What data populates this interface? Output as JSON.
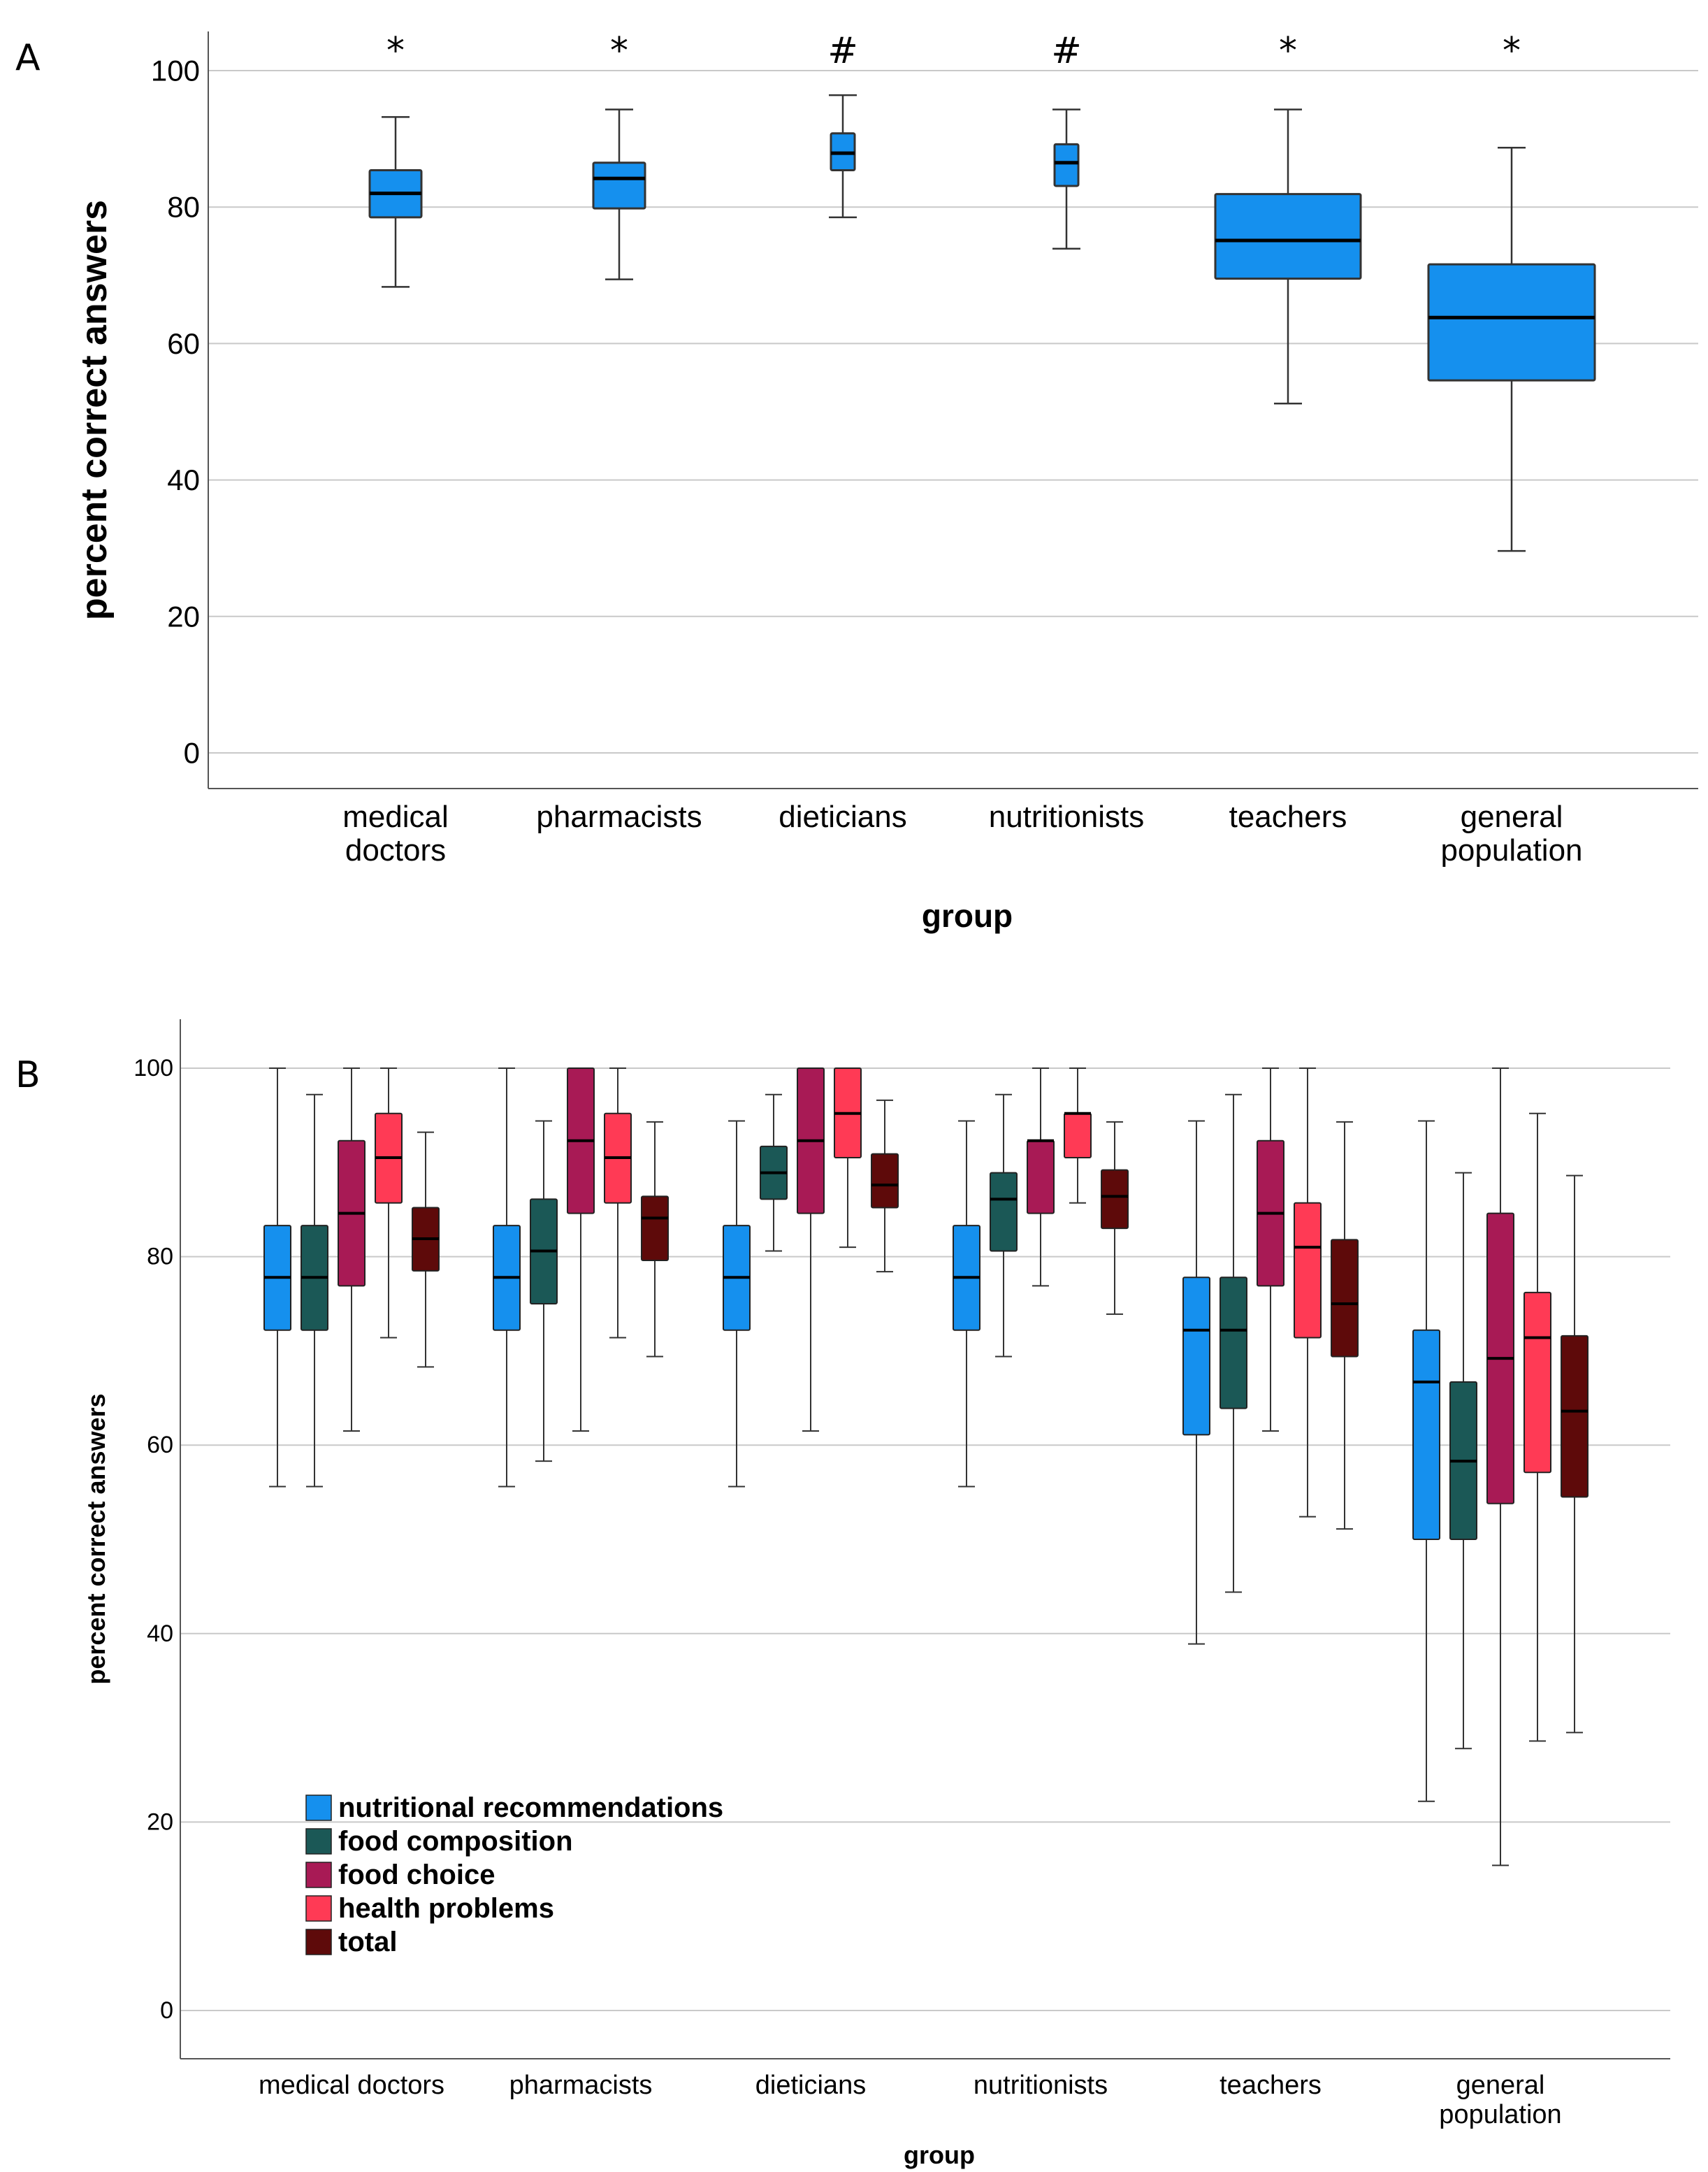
{
  "chart_data": [
    {
      "type": "box",
      "panel": "A",
      "xlabel": "group",
      "ylabel": "percent correct answers",
      "ylim": [
        -5,
        105
      ],
      "yticks": [
        0,
        20,
        40,
        60,
        80,
        100
      ],
      "grid": true,
      "categories": [
        [
          "medical",
          "doctors"
        ],
        [
          "pharmacists"
        ],
        [
          "dieticians"
        ],
        [
          "nutritionists"
        ],
        [
          "teachers"
        ],
        [
          "general",
          "population"
        ]
      ],
      "significance_marks": [
        "*",
        "*",
        "#",
        "#",
        "*",
        "*"
      ],
      "series": [
        {
          "name": "total",
          "color": "#1590EE",
          "boxes": [
            {
              "min": 68.3,
              "q1": 78.5,
              "median": 82.0,
              "q3": 85.4,
              "max": 93.2
            },
            {
              "min": 69.4,
              "q1": 79.8,
              "median": 84.2,
              "q3": 86.5,
              "max": 94.3
            },
            {
              "min": 78.5,
              "q1": 85.4,
              "median": 87.9,
              "q3": 90.8,
              "max": 96.4
            },
            {
              "min": 73.9,
              "q1": 83.1,
              "median": 86.5,
              "q3": 89.2,
              "max": 94.3
            },
            {
              "min": 51.2,
              "q1": 69.5,
              "median": 75.1,
              "q3": 81.9,
              "max": 94.3
            },
            {
              "min": 29.6,
              "q1": 54.6,
              "median": 63.8,
              "q3": 71.6,
              "max": 88.7
            }
          ]
        }
      ]
    },
    {
      "type": "box",
      "panel": "B",
      "xlabel": "group",
      "ylabel": "percent correct answers",
      "ylim": [
        -5,
        105.5
      ],
      "yticks": [
        0,
        20,
        40,
        60,
        80,
        100
      ],
      "grid": true,
      "legend_position": "bottom-left",
      "categories": [
        [
          "medical doctors"
        ],
        [
          "pharmacists"
        ],
        [
          "dieticians"
        ],
        [
          "nutritionists"
        ],
        [
          "teachers"
        ],
        [
          "general",
          "population"
        ]
      ],
      "series": [
        {
          "name": "nutritional recommendations",
          "color": "#1590EE",
          "boxes": [
            {
              "min": 55.6,
              "q1": 72.2,
              "median": 77.8,
              "q3": 83.3,
              "max": 100
            },
            {
              "min": 55.6,
              "q1": 72.2,
              "median": 77.8,
              "q3": 83.3,
              "max": 100
            },
            {
              "min": 55.6,
              "q1": 72.2,
              "median": 77.8,
              "q3": 83.3,
              "max": 94.4
            },
            {
              "min": 55.6,
              "q1": 72.2,
              "median": 77.8,
              "q3": 83.3,
              "max": 94.4
            },
            {
              "min": 38.9,
              "q1": 61.1,
              "median": 72.2,
              "q3": 77.8,
              "max": 94.4
            },
            {
              "min": 22.2,
              "q1": 50.0,
              "median": 66.7,
              "q3": 72.2,
              "max": 94.4
            }
          ]
        },
        {
          "name": "food composition",
          "color": "#1B5856",
          "boxes": [
            {
              "min": 55.6,
              "q1": 72.2,
              "median": 77.8,
              "q3": 83.3,
              "max": 97.2
            },
            {
              "min": 58.3,
              "q1": 75.0,
              "median": 80.6,
              "q3": 86.1,
              "max": 94.4
            },
            {
              "min": 80.6,
              "q1": 86.1,
              "median": 88.9,
              "q3": 91.7,
              "max": 97.2
            },
            {
              "min": 69.4,
              "q1": 80.6,
              "median": 86.1,
              "q3": 88.9,
              "max": 97.2
            },
            {
              "min": 44.4,
              "q1": 63.9,
              "median": 72.2,
              "q3": 77.8,
              "max": 97.2
            },
            {
              "min": 27.8,
              "q1": 50.0,
              "median": 58.3,
              "q3": 66.7,
              "max": 88.9
            }
          ]
        },
        {
          "name": "food choice",
          "color": "#A81A55",
          "boxes": [
            {
              "min": 61.5,
              "q1": 76.9,
              "median": 84.6,
              "q3": 92.3,
              "max": 100
            },
            {
              "min": 61.5,
              "q1": 84.6,
              "median": 92.3,
              "q3": 100,
              "max": 100
            },
            {
              "min": 61.5,
              "q1": 84.6,
              "median": 92.3,
              "q3": 100,
              "max": 100
            },
            {
              "min": 76.9,
              "q1": 84.6,
              "median": 92.3,
              "q3": 92.3,
              "max": 100
            },
            {
              "min": 61.5,
              "q1": 76.9,
              "median": 84.6,
              "q3": 92.3,
              "max": 100
            },
            {
              "min": 15.4,
              "q1": 53.8,
              "median": 69.2,
              "q3": 84.6,
              "max": 100
            }
          ]
        },
        {
          "name": "health problems",
          "color": "#FF3A55",
          "boxes": [
            {
              "min": 71.4,
              "q1": 85.7,
              "median": 90.5,
              "q3": 95.2,
              "max": 100
            },
            {
              "min": 71.4,
              "q1": 85.7,
              "median": 90.5,
              "q3": 95.2,
              "max": 100
            },
            {
              "min": 81.0,
              "q1": 90.5,
              "median": 95.2,
              "q3": 100,
              "max": 100
            },
            {
              "min": 85.7,
              "q1": 90.5,
              "median": 95.2,
              "q3": 95.2,
              "max": 100
            },
            {
              "min": 52.4,
              "q1": 71.4,
              "median": 81.0,
              "q3": 85.7,
              "max": 100
            },
            {
              "min": 28.6,
              "q1": 57.1,
              "median": 71.4,
              "q3": 76.2,
              "max": 95.2
            }
          ]
        },
        {
          "name": "total",
          "color": "#5E0A0A",
          "boxes": [
            {
              "min": 68.3,
              "q1": 78.5,
              "median": 81.9,
              "q3": 85.2,
              "max": 93.2
            },
            {
              "min": 69.4,
              "q1": 79.6,
              "median": 84.1,
              "q3": 86.4,
              "max": 94.3
            },
            {
              "min": 78.4,
              "q1": 85.2,
              "median": 87.6,
              "q3": 90.9,
              "max": 96.6
            },
            {
              "min": 73.9,
              "q1": 83.0,
              "median": 86.4,
              "q3": 89.2,
              "max": 94.3
            },
            {
              "min": 51.1,
              "q1": 69.4,
              "median": 75.0,
              "q3": 81.8,
              "max": 94.3
            },
            {
              "min": 29.5,
              "q1": 54.5,
              "median": 63.6,
              "q3": 71.6,
              "max": 88.6
            }
          ]
        }
      ]
    }
  ]
}
